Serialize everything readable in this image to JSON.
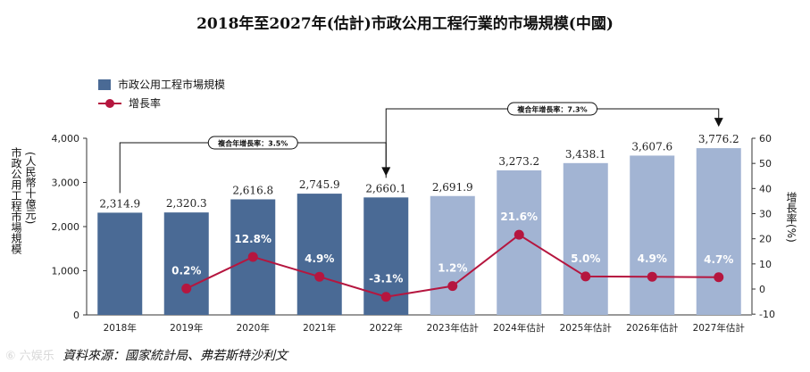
{
  "title": "2018年至2027年(估計)市政公用工程行業的市場規模(中國)",
  "legend": {
    "bar_label": "市政公用工程市場規模",
    "line_label": "增長率"
  },
  "y_left_label_line1": "市政公用工程市場規模",
  "y_left_label_line2": "(人民幣十億元)",
  "y_right_label": "增長率(%)",
  "cagr_hist": "複合年增長率：3.5%",
  "cagr_fore": "複合年增長率：7.3%",
  "source": "資料來源：國家統計局、弗若斯特沙利文",
  "watermark": "⑥ 六娱乐",
  "colors": {
    "actual": "#4a6a95",
    "forecast": "#a2b4d3",
    "line": "#b5163f"
  },
  "chart_data": {
    "type": "bar+line",
    "categories": [
      "2018年",
      "2019年",
      "2020年",
      "2021年",
      "2022年",
      "2023年估計",
      "2024年估計",
      "2025年估計",
      "2026年估計",
      "2027年估計"
    ],
    "series": [
      {
        "name": "市政公用工程市場規模",
        "values": [
          2314.9,
          2320.3,
          2616.8,
          2745.9,
          2660.1,
          2691.9,
          3273.2,
          3438.1,
          3607.6,
          3776.2
        ],
        "value_labels": [
          "2,314.9",
          "2,320.3",
          "2,616.8",
          "2,745.9",
          "2,660.1",
          "2,691.9",
          "3,273.2",
          "3,438.1",
          "3,607.6",
          "3,776.2"
        ],
        "forecast_from_index": 5
      },
      {
        "name": "增長率",
        "values": [
          null,
          0.2,
          12.8,
          4.9,
          -3.1,
          1.2,
          21.6,
          5.0,
          4.9,
          4.7
        ],
        "value_labels": [
          null,
          "0.2%",
          "12.8%",
          "4.9%",
          "-3.1%",
          "1.2%",
          "21.6%",
          "5.0%",
          "4.9%",
          "4.7%"
        ]
      }
    ],
    "y_left": {
      "min": 0,
      "max": 4000,
      "ticks": [
        0,
        1000,
        2000,
        3000,
        4000
      ],
      "tick_labels": [
        "0",
        "1,000",
        "2,000",
        "3,000",
        "4,000"
      ]
    },
    "y_right": {
      "min": -10,
      "max": 60,
      "ticks": [
        -10,
        0,
        10,
        20,
        30,
        40,
        50,
        60
      ],
      "tick_labels": [
        "-10",
        "0",
        "10",
        "20",
        "30",
        "40",
        "50",
        "60"
      ]
    }
  }
}
